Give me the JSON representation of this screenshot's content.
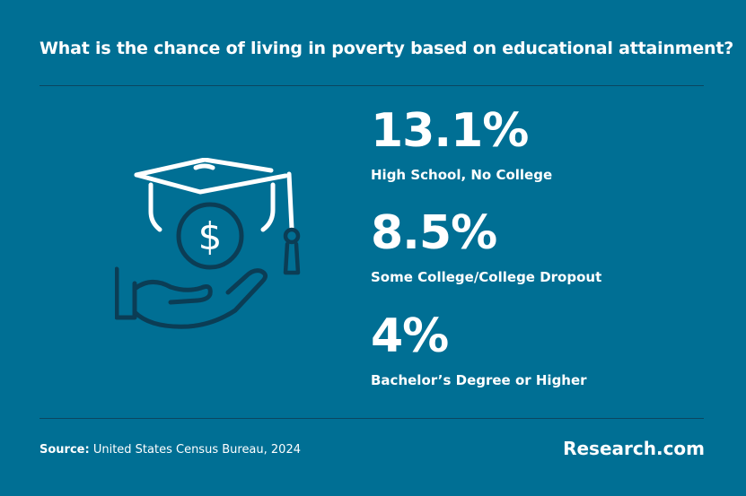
{
  "title": "What is the chance of living in poverty based on educational attainment?",
  "chart_data": {
    "type": "table",
    "values": [
      "13.1%",
      "8.5%",
      "4%"
    ],
    "categories": [
      "High School, No College",
      "Some College/College Dropout",
      "Bachelor’s Degree or Higher"
    ],
    "stats": [
      {
        "value": "13.1%",
        "label": "High School, No College"
      },
      {
        "value": "8.5%",
        "label": "Some College/College Dropout"
      },
      {
        "value": "4%",
        "label": "Bachelor’s Degree or Higher"
      }
    ]
  },
  "illustration": {
    "icon": "graduation-cap-money-hand-icon",
    "dollar_symbol": "$"
  },
  "source": {
    "label": "Source:",
    "text": "United States Census Bureau, 2024"
  },
  "brand": "Research.com",
  "colors": {
    "background": "#006f94",
    "icon_light": "#ffffff",
    "icon_dark": "#0b3d55"
  }
}
